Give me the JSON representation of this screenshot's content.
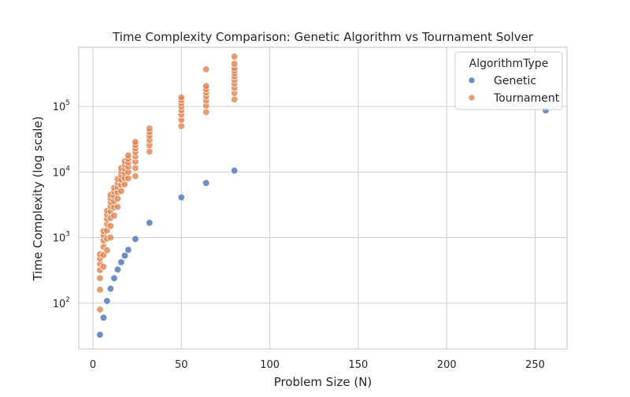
{
  "chart_data": {
    "type": "scatter",
    "title": "Time Complexity Comparison: Genetic Algorithm vs Tournament Solver",
    "xlabel": "Problem Size (N)",
    "ylabel": "Time Complexity (log scale)",
    "x_ticks": [
      0,
      50,
      100,
      150,
      200,
      250
    ],
    "x_tick_labels": [
      "0",
      "50",
      "100",
      "150",
      "200",
      "250"
    ],
    "xlim": [
      -8,
      268
    ],
    "y_scale": "log",
    "y_ticks": [
      100,
      1000,
      10000,
      100000
    ],
    "y_tick_labels": [
      {
        "base": "10",
        "exp": "2"
      },
      {
        "base": "10",
        "exp": "3"
      },
      {
        "base": "10",
        "exp": "4"
      },
      {
        "base": "10",
        "exp": "5"
      }
    ],
    "ylim": [
      20,
      800000
    ],
    "grid": true,
    "legend": {
      "title": "AlgorithmType",
      "placement": "top-right"
    },
    "series": [
      {
        "name": "Genetic",
        "color": "#4c72b0",
        "points": [
          {
            "x": 4,
            "y": 33
          },
          {
            "x": 6,
            "y": 60
          },
          {
            "x": 8,
            "y": 108
          },
          {
            "x": 10,
            "y": 166
          },
          {
            "x": 12,
            "y": 240
          },
          {
            "x": 14,
            "y": 325
          },
          {
            "x": 16,
            "y": 420
          },
          {
            "x": 18,
            "y": 530
          },
          {
            "x": 20,
            "y": 650
          },
          {
            "x": 24,
            "y": 950
          },
          {
            "x": 32,
            "y": 1680
          },
          {
            "x": 50,
            "y": 4100
          },
          {
            "x": 64,
            "y": 6800
          },
          {
            "x": 80,
            "y": 10500
          },
          {
            "x": 256,
            "y": 87000
          }
        ]
      },
      {
        "name": "Tournament",
        "color": "#dd8452",
        "points": [
          {
            "x": 4,
            "y": 80
          },
          {
            "x": 4,
            "y": 160
          },
          {
            "x": 4,
            "y": 240
          },
          {
            "x": 4,
            "y": 320
          },
          {
            "x": 4,
            "y": 400
          },
          {
            "x": 4,
            "y": 480
          },
          {
            "x": 4,
            "y": 560
          },
          {
            "x": 6,
            "y": 360
          },
          {
            "x": 6,
            "y": 540
          },
          {
            "x": 6,
            "y": 720
          },
          {
            "x": 6,
            "y": 900
          },
          {
            "x": 6,
            "y": 1080
          },
          {
            "x": 6,
            "y": 1260
          },
          {
            "x": 8,
            "y": 640
          },
          {
            "x": 8,
            "y": 960
          },
          {
            "x": 8,
            "y": 1280
          },
          {
            "x": 8,
            "y": 1600
          },
          {
            "x": 8,
            "y": 1920
          },
          {
            "x": 8,
            "y": 2240
          },
          {
            "x": 8,
            "y": 2560
          },
          {
            "x": 10,
            "y": 1000
          },
          {
            "x": 10,
            "y": 1500
          },
          {
            "x": 10,
            "y": 2000
          },
          {
            "x": 10,
            "y": 2500
          },
          {
            "x": 10,
            "y": 3000
          },
          {
            "x": 10,
            "y": 3500
          },
          {
            "x": 10,
            "y": 4000
          },
          {
            "x": 10,
            "y": 4500
          },
          {
            "x": 12,
            "y": 2160
          },
          {
            "x": 12,
            "y": 2880
          },
          {
            "x": 12,
            "y": 3600
          },
          {
            "x": 12,
            "y": 4320
          },
          {
            "x": 12,
            "y": 5040
          },
          {
            "x": 12,
            "y": 5760
          },
          {
            "x": 14,
            "y": 2940
          },
          {
            "x": 14,
            "y": 3920
          },
          {
            "x": 14,
            "y": 4900
          },
          {
            "x": 14,
            "y": 5880
          },
          {
            "x": 14,
            "y": 6860
          },
          {
            "x": 14,
            "y": 7840
          },
          {
            "x": 16,
            "y": 5120
          },
          {
            "x": 16,
            "y": 6400
          },
          {
            "x": 16,
            "y": 7680
          },
          {
            "x": 16,
            "y": 8960
          },
          {
            "x": 16,
            "y": 10240
          },
          {
            "x": 16,
            "y": 11520
          },
          {
            "x": 18,
            "y": 6480
          },
          {
            "x": 18,
            "y": 8100
          },
          {
            "x": 18,
            "y": 9720
          },
          {
            "x": 18,
            "y": 11340
          },
          {
            "x": 18,
            "y": 12960
          },
          {
            "x": 18,
            "y": 14580
          },
          {
            "x": 20,
            "y": 8000
          },
          {
            "x": 20,
            "y": 10000
          },
          {
            "x": 20,
            "y": 12000
          },
          {
            "x": 20,
            "y": 14000
          },
          {
            "x": 20,
            "y": 16000
          },
          {
            "x": 20,
            "y": 18000
          },
          {
            "x": 24,
            "y": 8640
          },
          {
            "x": 24,
            "y": 11520
          },
          {
            "x": 24,
            "y": 14400
          },
          {
            "x": 24,
            "y": 17280
          },
          {
            "x": 24,
            "y": 20160
          },
          {
            "x": 24,
            "y": 23040
          },
          {
            "x": 24,
            "y": 25920
          },
          {
            "x": 24,
            "y": 28800
          },
          {
            "x": 32,
            "y": 20480
          },
          {
            "x": 32,
            "y": 25600
          },
          {
            "x": 32,
            "y": 30720
          },
          {
            "x": 32,
            "y": 35840
          },
          {
            "x": 32,
            "y": 40960
          },
          {
            "x": 32,
            "y": 46080
          },
          {
            "x": 50,
            "y": 50000
          },
          {
            "x": 50,
            "y": 62500
          },
          {
            "x": 50,
            "y": 75000
          },
          {
            "x": 50,
            "y": 87500
          },
          {
            "x": 50,
            "y": 100000
          },
          {
            "x": 50,
            "y": 112500
          },
          {
            "x": 50,
            "y": 125000
          },
          {
            "x": 50,
            "y": 137500
          },
          {
            "x": 64,
            "y": 81920
          },
          {
            "x": 64,
            "y": 102400
          },
          {
            "x": 64,
            "y": 122880
          },
          {
            "x": 64,
            "y": 143360
          },
          {
            "x": 64,
            "y": 163840
          },
          {
            "x": 64,
            "y": 184320
          },
          {
            "x": 64,
            "y": 204800
          },
          {
            "x": 64,
            "y": 368640
          },
          {
            "x": 80,
            "y": 128000
          },
          {
            "x": 80,
            "y": 160000
          },
          {
            "x": 80,
            "y": 192000
          },
          {
            "x": 80,
            "y": 224000
          },
          {
            "x": 80,
            "y": 256000
          },
          {
            "x": 80,
            "y": 288000
          },
          {
            "x": 80,
            "y": 320000
          },
          {
            "x": 80,
            "y": 352000
          },
          {
            "x": 80,
            "y": 384000
          },
          {
            "x": 80,
            "y": 448000
          },
          {
            "x": 80,
            "y": 576000
          }
        ]
      }
    ]
  }
}
